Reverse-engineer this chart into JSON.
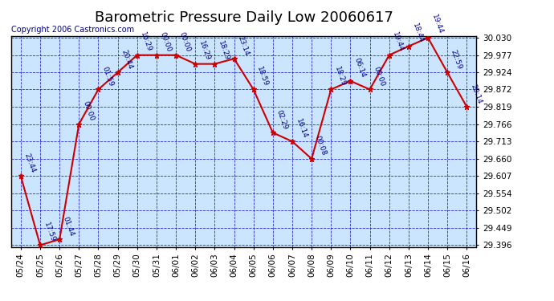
{
  "title": "Barometric Pressure Daily Low 20060617",
  "copyright": "Copyright 2006 Castronics.com",
  "background_color": "#cce5ff",
  "outer_background": "#ffffff",
  "line_color": "#cc0000",
  "marker_color": "#cc0000",
  "grid_color": "#0000cc",
  "text_color": "#000000",
  "dates": [
    "05/24\n0",
    "05/25\n0",
    "05/26\n0",
    "05/27\n0",
    "05/28\n0",
    "05/29\n0",
    "05/30\n0",
    "05/31\n0",
    "06/01\n0",
    "06/02\n0",
    "06/03\n0",
    "06/04\n0",
    "06/05\n0",
    "06/06\n0",
    "06/07\n0",
    "06/08\n0",
    "06/09\n0",
    "06/10\n0",
    "06/11\n0",
    "06/12\n0",
    "06/13\n0",
    "06/14\n0",
    "06/15\n0",
    "06/16\n0"
  ],
  "dates_simple": [
    "05/24",
    "05/25",
    "05/26",
    "05/27",
    "05/28",
    "05/29",
    "05/30",
    "05/31",
    "06/01",
    "06/02",
    "06/03",
    "06/04",
    "06/05",
    "06/06",
    "06/07",
    "06/08",
    "06/09",
    "06/10",
    "06/11",
    "06/12",
    "06/13",
    "06/14",
    "06/15",
    "06/16"
  ],
  "values": [
    29.607,
    29.396,
    29.414,
    29.766,
    29.872,
    29.924,
    29.977,
    29.977,
    29.977,
    29.95,
    29.95,
    29.966,
    29.872,
    29.74,
    29.713,
    29.66,
    29.872,
    29.898,
    29.872,
    29.977,
    30.004,
    30.03,
    29.924,
    29.819
  ],
  "labels": [
    "23:44",
    "17:59",
    "01:44",
    "00:00",
    "01:59",
    "20:44",
    "16:29",
    "00:00",
    "00:00",
    "16:29",
    "18:29",
    "23:14",
    "18:59",
    "02:29",
    "16:14",
    "00:08",
    "18:29",
    "06:14",
    "00:00",
    "19:44",
    "18:44",
    "19:44",
    "22:59",
    "20:14"
  ],
  "ylim_min": 29.396,
  "ylim_max": 30.03,
  "yticks": [
    29.396,
    29.449,
    29.502,
    29.554,
    29.607,
    29.66,
    29.713,
    29.766,
    29.819,
    29.872,
    29.924,
    29.977,
    30.03
  ],
  "title_fontsize": 13,
  "label_fontsize": 6.5,
  "tick_fontsize": 7.5,
  "copyright_fontsize": 7
}
